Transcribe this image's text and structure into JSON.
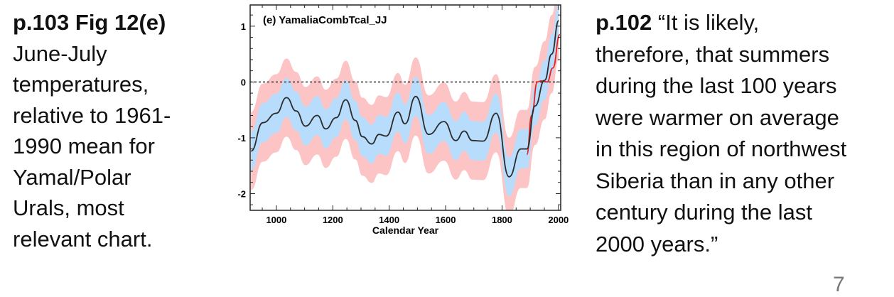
{
  "left_text": {
    "heading": "p.103 Fig 12(e)",
    "lines": [
      "June-July",
      "temperatures,",
      "relative to 1961-",
      "1990 mean for",
      "Yamal/Polar",
      "Urals, most",
      "relevant chart."
    ]
  },
  "right_text": {
    "heading": "p.102",
    "first_line_rest": " “It is likely,",
    "lines": [
      "therefore, that summers",
      "during the last 100 years",
      "were warmer on average",
      "in this region of northwest",
      "Siberia than in any other",
      "century during the last",
      "2000 years.”"
    ]
  },
  "slide_number": "7",
  "chart_data": {
    "type": "line",
    "title": "(e) YamaliaCombTcal_JJ",
    "xlabel": "Calendar Year",
    "ylabel": "",
    "xlim": [
      907,
      2008
    ],
    "ylim": [
      -2.3,
      1.38
    ],
    "xticks": [
      1000,
      1200,
      1400,
      1600,
      1800,
      2000
    ],
    "yticks": [
      1,
      0,
      -1,
      -2
    ],
    "reference_line": {
      "y": 0,
      "style": "dashed"
    },
    "colors": {
      "mean": "#2b2b2b",
      "inner_band": "#b8dcfb",
      "outer_band": "#fcc4c4",
      "instrumental": "#e8201c"
    },
    "inner_band_halfwidth": 0.35,
    "outer_band_halfwidth": 0.7,
    "mean": {
      "x": [
        910,
        952,
        1000,
        1036,
        1070,
        1103,
        1145,
        1175,
        1212,
        1246,
        1280,
        1305,
        1338,
        1364,
        1389,
        1431,
        1456,
        1494,
        1540,
        1594,
        1636,
        1666,
        1695,
        1733,
        1779,
        1825,
        1867,
        1888,
        1917,
        1951,
        1976,
        2001
      ],
      "y": [
        -1.24,
        -0.73,
        -0.56,
        -0.28,
        -0.52,
        -0.79,
        -0.6,
        -0.84,
        -0.64,
        -0.32,
        -0.69,
        -0.98,
        -1.11,
        -0.94,
        -0.97,
        -0.54,
        -0.75,
        -0.26,
        -0.94,
        -0.71,
        -1.05,
        -0.88,
        -1.05,
        -1.06,
        -0.56,
        -1.7,
        -1.2,
        -1.2,
        -0.43,
        0.03,
        0.5,
        1.1
      ]
    },
    "instrumental": {
      "x": [
        1888,
        1905,
        1925,
        1940,
        1960,
        1980,
        2005
      ],
      "y": [
        -1.3,
        -0.6,
        0.0,
        0.02,
        0.0,
        0.25,
        0.85
      ]
    }
  }
}
